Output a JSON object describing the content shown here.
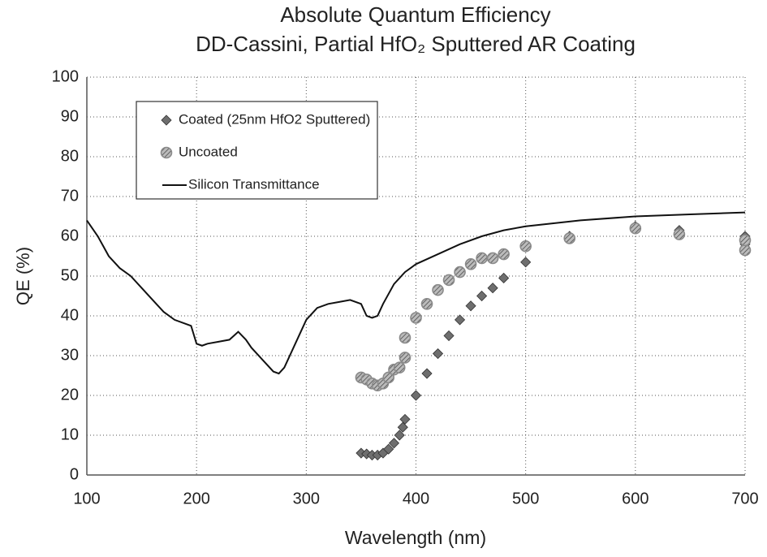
{
  "chart_data": {
    "type": "scatter",
    "title": "Absolute Quantum Efficiency",
    "subtitle": "DD-Cassini, Partial HfO₂ Sputtered AR Coating",
    "xlabel": "Wavelength (nm)",
    "ylabel": "QE (%)",
    "xlim": [
      100,
      700
    ],
    "ylim": [
      0,
      100
    ],
    "xticks": [
      100,
      200,
      300,
      400,
      500,
      600,
      700
    ],
    "yticks": [
      0,
      10,
      20,
      30,
      40,
      50,
      60,
      70,
      80,
      90,
      100
    ],
    "grid": true,
    "legend": "upper left",
    "series": [
      {
        "name": "Coated (25nm HfO2 Sputtered)",
        "marker": "diamond",
        "color": "#6e6e6e",
        "x": [
          350,
          355,
          360,
          365,
          370,
          375,
          380,
          385,
          388,
          390,
          400,
          410,
          420,
          430,
          440,
          450,
          460,
          470,
          480,
          500,
          540,
          600,
          640,
          700,
          700
        ],
        "values": [
          5.5,
          5.3,
          5,
          5,
          5.5,
          6.5,
          8,
          10,
          12,
          14,
          20,
          25.5,
          30.5,
          35,
          39,
          42.5,
          45,
          47,
          49.5,
          53.5,
          60,
          62.5,
          61.5,
          58,
          60
        ]
      },
      {
        "name": "Uncoated",
        "marker": "circle",
        "color": "#8a8a8a",
        "x": [
          350,
          355,
          360,
          365,
          370,
          375,
          380,
          385,
          390,
          390,
          400,
          410,
          420,
          430,
          440,
          450,
          460,
          470,
          480,
          500,
          540,
          600,
          640,
          700,
          700
        ],
        "values": [
          24.5,
          24,
          23,
          22.5,
          23,
          24.5,
          26.5,
          27,
          29.5,
          34.5,
          39.5,
          43,
          46.5,
          49,
          51,
          53,
          54.5,
          54.5,
          55.5,
          57.5,
          59.5,
          62,
          60.5,
          56.5,
          59
        ]
      },
      {
        "name": "Silicon Transmittance",
        "marker": "line",
        "color": "#111111",
        "x": [
          100,
          110,
          120,
          130,
          140,
          150,
          160,
          170,
          180,
          190,
          195,
          200,
          205,
          210,
          220,
          230,
          238,
          245,
          250,
          260,
          270,
          275,
          280,
          290,
          300,
          310,
          320,
          330,
          340,
          350,
          355,
          360,
          365,
          370,
          380,
          390,
          400,
          420,
          440,
          460,
          480,
          500,
          550,
          600,
          650,
          700
        ],
        "values": [
          64,
          60,
          55,
          52,
          50,
          47,
          44,
          41,
          39,
          38,
          37.5,
          33,
          32.5,
          33,
          33.5,
          34,
          36,
          34,
          32,
          29,
          26,
          25.5,
          27,
          33,
          39,
          42,
          43,
          43.5,
          44,
          43,
          40,
          39.5,
          40,
          43,
          48,
          51,
          53,
          55.5,
          58,
          60,
          61.5,
          62.5,
          64,
          65,
          65.5,
          66
        ]
      }
    ]
  }
}
